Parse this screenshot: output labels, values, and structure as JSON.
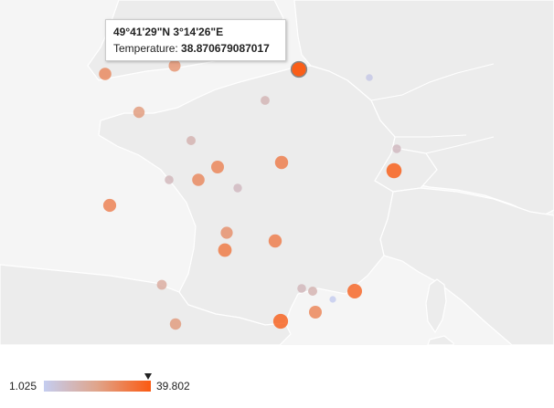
{
  "map": {
    "region": "France",
    "colors": {
      "background": "#f5f5f5",
      "land": "#ececec",
      "border": "#ffffff",
      "scale_min": "#c4cdf0",
      "scale_mid": "#e0a48a",
      "scale_max": "#fb5a12"
    },
    "points": [
      {
        "temperature": 27,
        "selected": false
      },
      {
        "temperature": 24,
        "selected": false
      },
      {
        "temperature": 38.870679087017,
        "selected": true
      },
      {
        "temperature": 12,
        "selected": false
      },
      {
        "temperature": 3,
        "selected": false
      },
      {
        "temperature": 22,
        "selected": false
      },
      {
        "temperature": 13,
        "selected": false
      },
      {
        "temperature": 10,
        "selected": false
      },
      {
        "temperature": 28,
        "selected": false
      },
      {
        "temperature": 30,
        "selected": false
      },
      {
        "temperature": 27,
        "selected": false
      },
      {
        "temperature": 38,
        "selected": false
      },
      {
        "temperature": 11,
        "selected": false
      },
      {
        "temperature": 29,
        "selected": false
      },
      {
        "temperature": 10,
        "selected": false
      },
      {
        "temperature": 25,
        "selected": false
      },
      {
        "temperature": 31,
        "selected": false
      },
      {
        "temperature": 30,
        "selected": false
      },
      {
        "temperature": 16,
        "selected": false
      },
      {
        "temperature": 11,
        "selected": false
      },
      {
        "temperature": 13,
        "selected": false
      },
      {
        "temperature": 1.5,
        "selected": false
      },
      {
        "temperature": 28,
        "selected": false
      },
      {
        "temperature": 36,
        "selected": false
      },
      {
        "temperature": 22,
        "selected": false
      },
      {
        "temperature": 37,
        "selected": false
      },
      {
        "temperature": 30,
        "selected": false
      }
    ]
  },
  "tooltip": {
    "title": "49°41'29\"N 3°14'26\"E",
    "label": "Temperature:",
    "value": "38.870679087017"
  },
  "legend": {
    "min_label": "1.025",
    "max_label": "39.802",
    "min_value": 1.025,
    "max_value": 39.802,
    "marker_value": 38.870679087017
  }
}
